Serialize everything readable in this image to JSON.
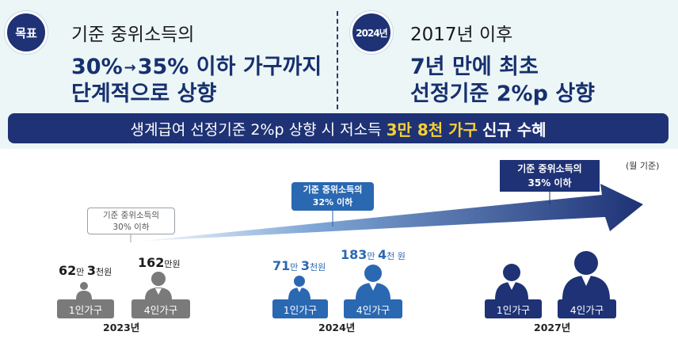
{
  "goal": {
    "badge": "목표",
    "subtitle": "기준 중위소득의",
    "line1_from": "30%",
    "line1_arrow": "→",
    "line1_to": "35% 이하 가구까지",
    "line2": "단계적으로 상향"
  },
  "y2024": {
    "badge": "2024년",
    "subtitle": "2017년 이후",
    "line1": "7년 만에 최초",
    "line2": "선정기준 2%p 상향"
  },
  "banner": {
    "prefix": "생계급여 선정기준 2%p 상향 시 저소득",
    "highlight": "3만 8천 가구",
    "suffix": "신규 수혜"
  },
  "unit_note": "(월 기준)",
  "timeline": {
    "y2023": {
      "year": "2023년",
      "criteria_line1": "기준 중위소득의",
      "criteria_line2": "30% 이하",
      "single": {
        "amount_a": "62",
        "unit_a": "만",
        "amount_b": "3",
        "unit_b": "천원",
        "label": "1인가구"
      },
      "four": {
        "amount_a": "162",
        "unit_a": "만원",
        "label": "4인가구"
      }
    },
    "y2024": {
      "year": "2024년",
      "criteria_line1": "기준 중위소득의",
      "criteria_line2": "32% 이하",
      "single": {
        "amount_a": "71",
        "unit_a": "만",
        "amount_b": "3",
        "unit_b": "천원",
        "label": "1인가구"
      },
      "four": {
        "amount_a": "183",
        "unit_a": "만",
        "amount_b": "4",
        "unit_b": "천 원",
        "label": "4인가구"
      }
    },
    "y2027": {
      "year": "2027년",
      "criteria_line1": "기준 중위소득의",
      "criteria_line2": "35% 이하",
      "single": {
        "label": "1인가구"
      },
      "four": {
        "label": "4인가구"
      }
    }
  },
  "colors": {
    "navy": "#1e3275",
    "blue": "#2a68b2",
    "gray": "#7a7a7a",
    "yellow": "#f7d033",
    "panel": "#ecf6f7"
  }
}
